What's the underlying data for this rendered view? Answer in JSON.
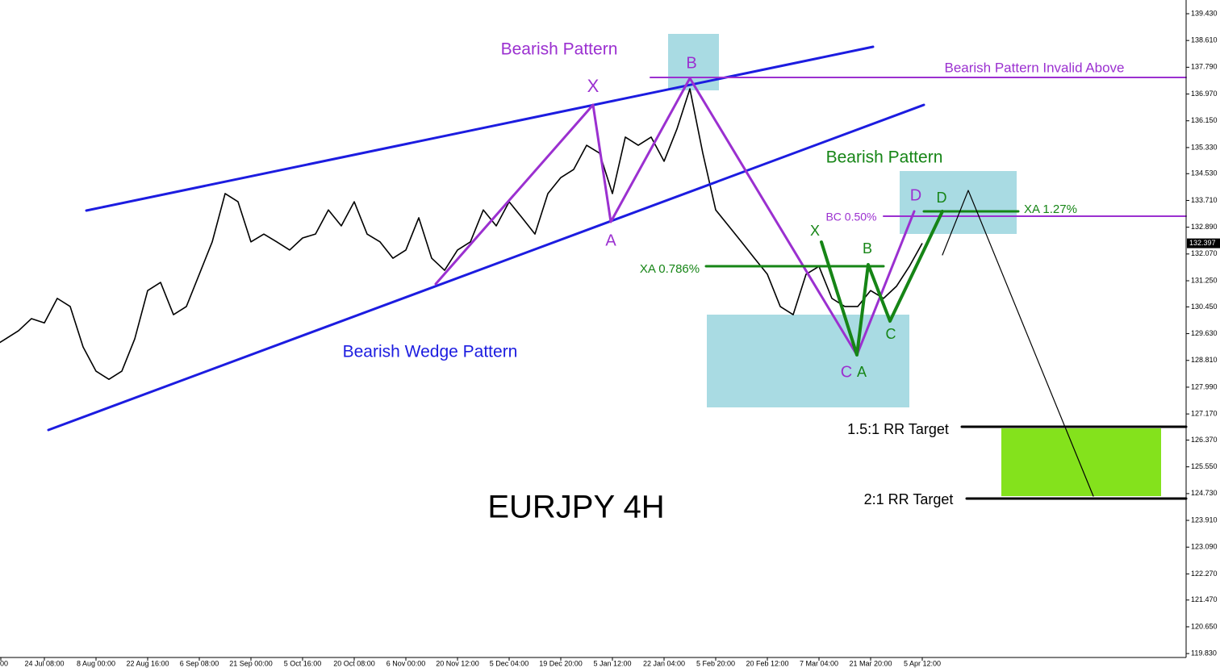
{
  "chart_data": {
    "type": "line",
    "title": "EURJPY 4H",
    "color": "#000000",
    "categories": [
      "00",
      null,
      null,
      null,
      "24 Jul 08:00",
      null,
      null,
      null,
      "8 Aug 00:00",
      null,
      null,
      null,
      "22 Aug 16:00",
      null,
      null,
      null,
      "6 Sep 08:00",
      null,
      null,
      null,
      "21 Sep 00:00",
      null,
      null,
      null,
      "5 Oct 16:00",
      null,
      null,
      null,
      "20 Oct 08:00",
      null,
      null,
      null,
      "6 Nov 00:00",
      null,
      null,
      null,
      "20 Nov 12:00",
      null,
      null,
      null,
      "5 Dec 04:00",
      null,
      null,
      null,
      "19 Dec 20:00",
      null,
      null,
      null,
      "5 Jan 12:00",
      null,
      null,
      null,
      "22 Jan 04:00",
      null,
      null,
      null,
      "5 Feb 20:00",
      null,
      null,
      null,
      "20 Feb 12:00",
      null,
      null,
      null,
      "7 Mar 04:00",
      null,
      null,
      null,
      "21 Mar 20:00",
      null,
      null,
      null,
      "5 Apr 12:00"
    ],
    "values": [
      129.22,
      129.47,
      129.72,
      130.09,
      129.96,
      130.71,
      130.46,
      129.22,
      128.48,
      128.23,
      128.48,
      129.47,
      130.95,
      131.2,
      130.21,
      130.46,
      131.45,
      132.44,
      133.92,
      133.67,
      132.44,
      132.68,
      132.44,
      132.19,
      132.56,
      132.68,
      133.42,
      132.93,
      133.67,
      132.68,
      132.44,
      131.94,
      132.19,
      133.18,
      131.94,
      131.57,
      132.19,
      132.44,
      133.42,
      132.93,
      133.67,
      133.18,
      132.68,
      133.92,
      134.41,
      134.66,
      135.4,
      135.16,
      133.92,
      135.65,
      135.4,
      135.65,
      134.91,
      135.9,
      137.13,
      135.16,
      133.42,
      132.93,
      132.44,
      131.94,
      131.45,
      130.46,
      130.21,
      131.45,
      131.69,
      130.71,
      130.46,
      130.46,
      130.95,
      130.71,
      131.08,
      131.69,
      132.4
    ],
    "current_price": {
      "value": 132.397,
      "label": "132.397"
    },
    "ylim": [
      119.71,
      139.85
    ],
    "yticks": [
      {
        "value": 139.43,
        "label": "139.430"
      },
      {
        "value": 138.61,
        "label": "138.610"
      },
      {
        "value": 137.79,
        "label": "137.790"
      },
      {
        "value": 136.97,
        "label": "136.970"
      },
      {
        "value": 136.15,
        "label": "136.150"
      },
      {
        "value": 135.33,
        "label": "135.330"
      },
      {
        "value": 134.53,
        "label": "134.530"
      },
      {
        "value": 133.71,
        "label": "133.710"
      },
      {
        "value": 132.89,
        "label": "132.890"
      },
      {
        "value": 132.07,
        "label": "132.070"
      },
      {
        "value": 131.25,
        "label": "131.250"
      },
      {
        "value": 130.45,
        "label": "130.450"
      },
      {
        "value": 129.63,
        "label": "129.630"
      },
      {
        "value": 128.81,
        "label": "128.810"
      },
      {
        "value": 127.99,
        "label": "127.990"
      },
      {
        "value": 127.17,
        "label": "127.170"
      },
      {
        "value": 126.37,
        "label": "126.370"
      },
      {
        "value": 125.55,
        "label": "125.550"
      },
      {
        "value": 124.73,
        "label": "124.730"
      },
      {
        "value": 123.91,
        "label": "123.910"
      },
      {
        "value": 123.09,
        "label": "123.090"
      },
      {
        "value": 122.27,
        "label": "122.270"
      },
      {
        "value": 121.47,
        "label": "121.470"
      },
      {
        "value": 120.65,
        "label": "120.650"
      },
      {
        "value": 119.83,
        "label": "119.830"
      }
    ],
    "annotations": [
      "Bearish Pattern",
      "X",
      "A",
      "B",
      "Bearish Pattern Invalid Above",
      "Bearish Pattern",
      "X",
      "B",
      "C",
      "A",
      "D",
      "D",
      "C",
      "BC 0.50%",
      "XA 1.27%",
      "XA 0.786%",
      "Bearish Wedge Pattern",
      "1.5:1 RR Target",
      "2:1 RR Target"
    ]
  }
}
